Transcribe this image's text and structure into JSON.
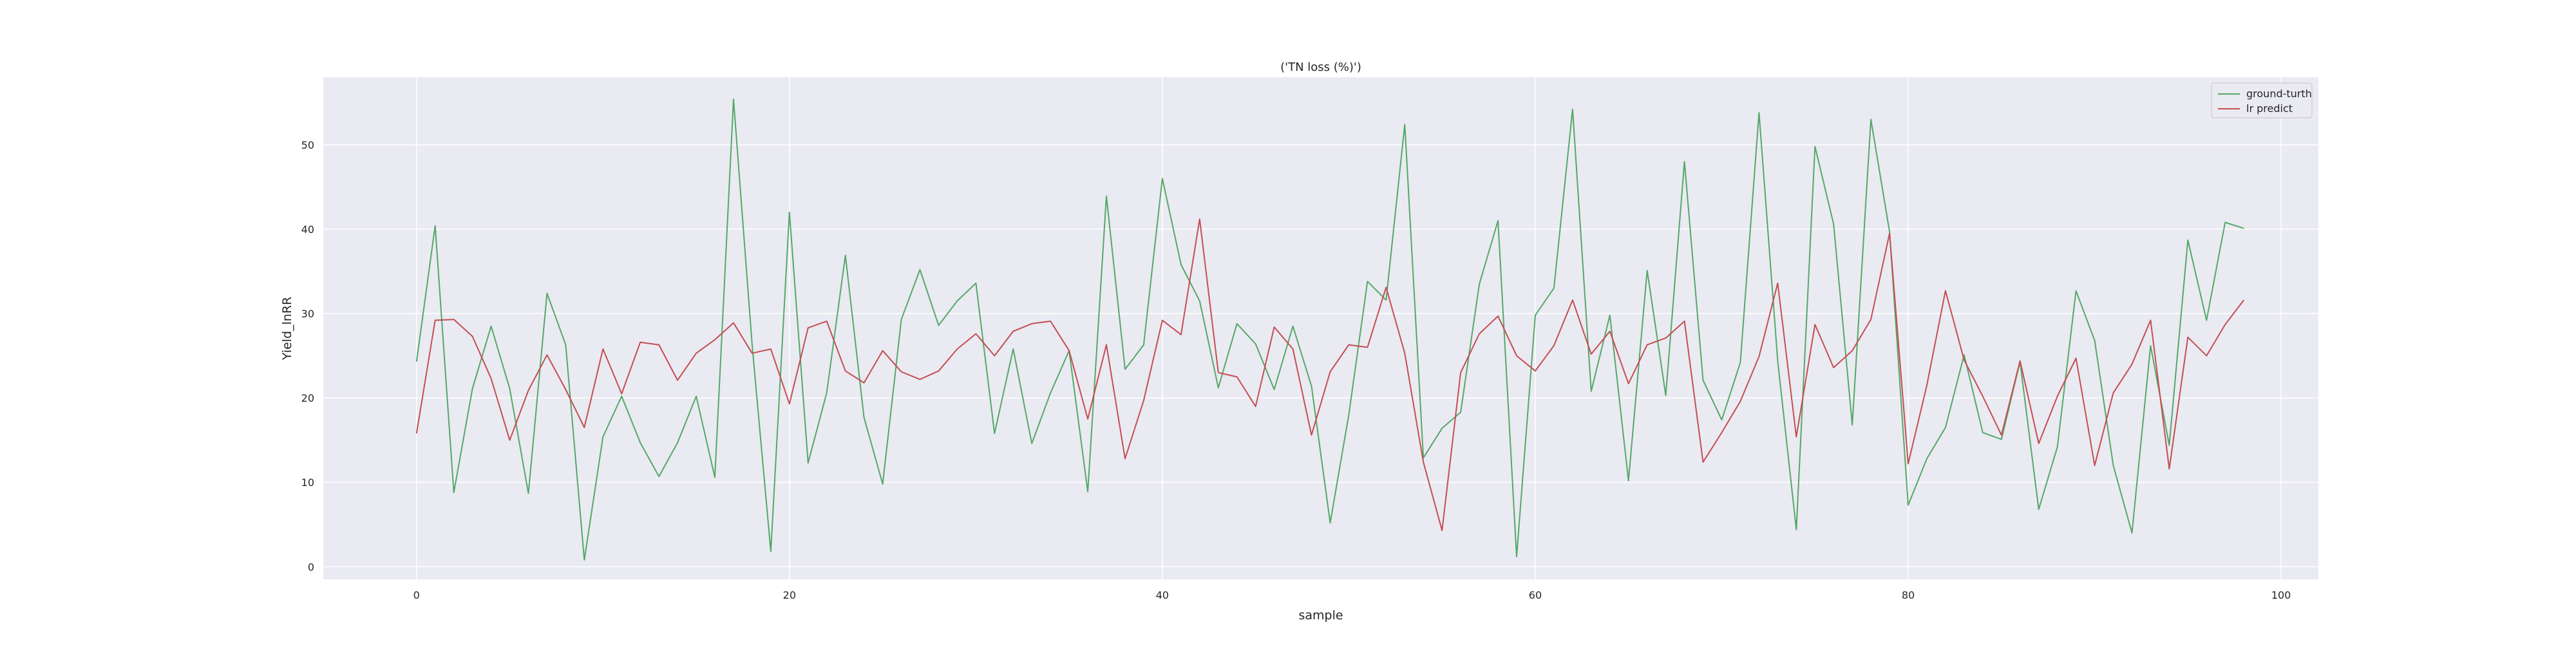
{
  "chart_data": {
    "type": "line",
    "title": "('TN loss (%)')",
    "xlabel": "sample",
    "ylabel": "Yield_lnRR",
    "xlim": [
      -5,
      102
    ],
    "ylim": [
      -1.5,
      58
    ],
    "xticks": [
      0,
      20,
      40,
      60,
      80,
      100
    ],
    "yticks": [
      0,
      10,
      20,
      30,
      40,
      50
    ],
    "grid": true,
    "legend_position": "top-right",
    "x": [
      0,
      1,
      2,
      3,
      4,
      5,
      6,
      7,
      8,
      9,
      10,
      11,
      12,
      13,
      14,
      15,
      16,
      17,
      18,
      19,
      20,
      21,
      22,
      23,
      24,
      25,
      26,
      27,
      28,
      29,
      30,
      31,
      32,
      33,
      34,
      35,
      36,
      37,
      38,
      39,
      40,
      41,
      42,
      43,
      44,
      45,
      46,
      47,
      48,
      49,
      50,
      51,
      52,
      53,
      54,
      55,
      56,
      57,
      58,
      59,
      60,
      61,
      62,
      63,
      64,
      65,
      66,
      67,
      68,
      69,
      70,
      71,
      72,
      73,
      74,
      75,
      76,
      77,
      78,
      79,
      80,
      81,
      82,
      83,
      84,
      85,
      86,
      87,
      88,
      89,
      90,
      91,
      92,
      93,
      94,
      95,
      96,
      97,
      98
    ],
    "series": [
      {
        "name": "ground-turth",
        "color": "#55a868",
        "values": [
          24.3,
          40.4,
          8.8,
          21.1,
          28.5,
          21.1,
          8.7,
          32.4,
          26.3,
          0.8,
          15.4,
          20.2,
          14.7,
          10.7,
          14.7,
          20.2,
          10.6,
          55.4,
          26.3,
          1.8,
          42.0,
          12.3,
          20.6,
          36.9,
          17.7,
          9.8,
          29.3,
          35.2,
          28.6,
          31.5,
          33.6,
          15.8,
          25.8,
          14.6,
          20.6,
          25.6,
          8.9,
          43.9,
          23.4,
          26.3,
          46.0,
          35.8,
          31.5,
          21.2,
          28.8,
          26.4,
          21.0,
          28.5,
          21.4,
          5.2,
          18.0,
          33.8,
          31.6,
          52.4,
          12.9,
          16.4,
          18.3,
          33.5,
          41.0,
          1.2,
          29.8,
          33.0,
          54.2,
          20.8,
          29.8,
          10.2,
          35.1,
          20.3,
          48.0,
          22.1,
          17.4,
          24.2,
          53.8,
          24.4,
          4.4,
          49.8,
          40.6,
          16.8,
          53.0,
          39.7,
          7.3,
          12.8,
          16.5,
          25.1,
          15.9,
          15.1,
          24.3,
          6.8,
          14.2,
          32.7,
          26.8,
          12.0,
          4.0,
          26.2,
          14.4,
          38.7,
          29.2,
          40.8,
          40.1
        ]
      },
      {
        "name": "lr predict",
        "color": "#c44e52",
        "values": [
          15.8,
          29.2,
          29.3,
          27.3,
          22.3,
          15.0,
          20.9,
          25.1,
          21.0,
          16.5,
          25.8,
          20.5,
          26.6,
          26.3,
          22.1,
          25.3,
          26.9,
          28.9,
          25.3,
          25.8,
          19.3,
          28.3,
          29.1,
          23.2,
          21.8,
          25.6,
          23.1,
          22.2,
          23.2,
          25.8,
          27.6,
          25.0,
          27.9,
          28.8,
          29.1,
          25.6,
          17.5,
          26.3,
          12.8,
          19.7,
          29.2,
          27.5,
          41.2,
          23.0,
          22.5,
          19.0,
          28.4,
          25.8,
          15.6,
          23.1,
          26.3,
          26.0,
          33.1,
          25.3,
          12.4,
          4.3,
          23.0,
          27.6,
          29.7,
          25.0,
          23.2,
          26.2,
          31.6,
          25.2,
          27.9,
          21.7,
          26.3,
          27.1,
          29.1,
          12.4,
          15.9,
          19.6,
          24.9,
          33.6,
          15.4,
          28.7,
          23.6,
          25.6,
          29.3,
          39.5,
          12.2,
          21.5,
          32.7,
          24.5,
          20.2,
          15.6,
          24.4,
          14.6,
          20.2,
          24.7,
          12.0,
          20.6,
          24.0,
          29.2,
          11.6,
          27.2,
          25.0,
          28.7,
          31.6
        ]
      }
    ]
  }
}
